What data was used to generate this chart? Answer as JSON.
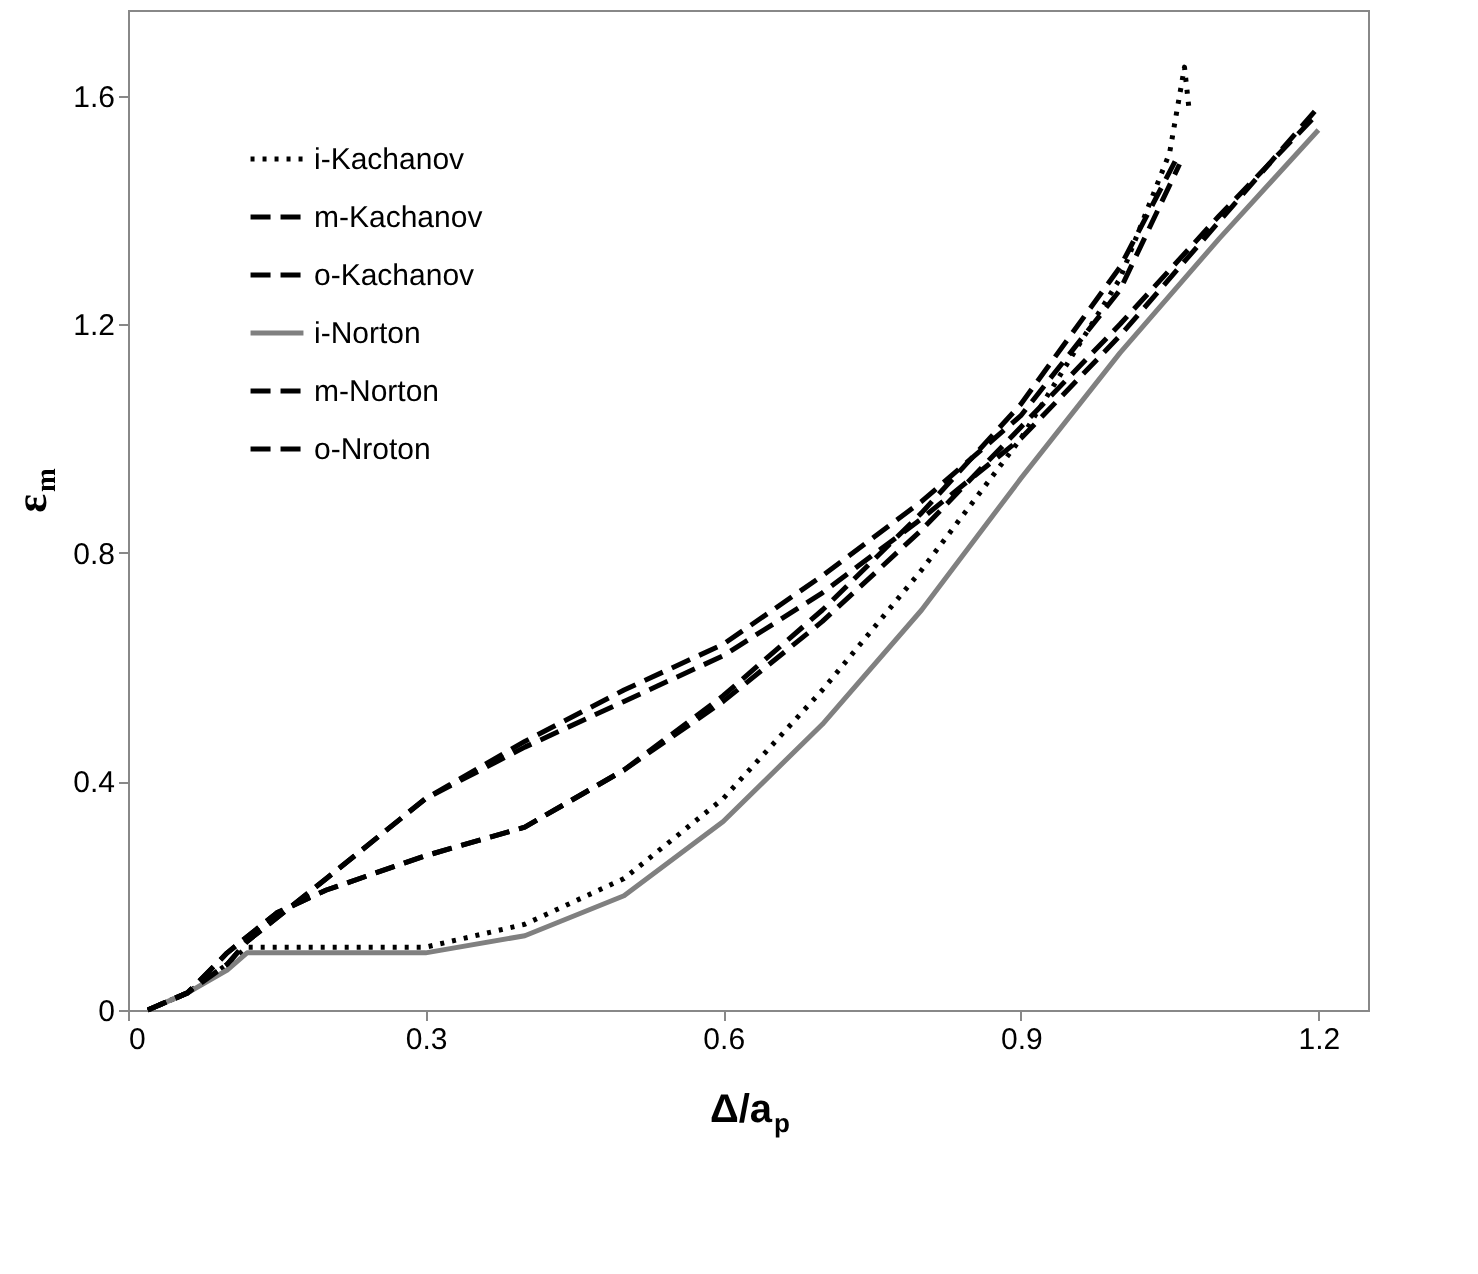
{
  "chart_data": {
    "type": "line",
    "xlabel": "Δ/a$_{p}$",
    "ylabel": "ε$_{m}$",
    "xlim": [
      0,
      1.25
    ],
    "ylim": [
      0,
      1.75
    ],
    "xticks": [
      0,
      0.3,
      0.6,
      0.9,
      1.2
    ],
    "yticks": [
      0,
      0.4,
      0.8,
      1.2,
      1.6
    ],
    "grid": false,
    "legend": "top left",
    "marker": "none",
    "series": [
      {
        "name": "i-Kachanov",
        "color": "#000000",
        "line_style": "dotted",
        "x": [
          0.02,
          0.06,
          0.1,
          0.12,
          0.2,
          0.3,
          0.4,
          0.5,
          0.6,
          0.7,
          0.8,
          0.9,
          1.0,
          1.05,
          1.065,
          1.07
        ],
        "values": [
          0,
          0.03,
          0.08,
          0.11,
          0.11,
          0.11,
          0.15,
          0.23,
          0.37,
          0.56,
          0.77,
          1.0,
          1.28,
          1.5,
          1.65,
          1.57
        ]
      },
      {
        "name": "m-Kachanov",
        "color": "#000000",
        "line_style": "dashed",
        "x": [
          0.02,
          0.06,
          0.1,
          0.15,
          0.2,
          0.3,
          0.4,
          0.5,
          0.6,
          0.7,
          0.8,
          0.9,
          1.0,
          1.06
        ],
        "values": [
          0,
          0.03,
          0.1,
          0.17,
          0.21,
          0.27,
          0.32,
          0.42,
          0.55,
          0.7,
          0.87,
          1.06,
          1.3,
          1.5
        ]
      },
      {
        "name": "o-Kachanov",
        "color": "#000000",
        "line_style": "dashed",
        "x": [
          0.02,
          0.06,
          0.1,
          0.12,
          0.2,
          0.3,
          0.4,
          0.5,
          0.6,
          0.7,
          0.8,
          0.9,
          1.0,
          1.06
        ],
        "values": [
          0,
          0.03,
          0.08,
          0.12,
          0.23,
          0.37,
          0.47,
          0.56,
          0.64,
          0.76,
          0.89,
          1.04,
          1.26,
          1.48
        ]
      },
      {
        "name": "i-Norton",
        "color": "#808080",
        "line_style": "solid",
        "x": [
          0.02,
          0.06,
          0.1,
          0.12,
          0.2,
          0.3,
          0.4,
          0.5,
          0.6,
          0.7,
          0.8,
          0.9,
          1.0,
          1.1,
          1.2
        ],
        "values": [
          0,
          0.03,
          0.07,
          0.1,
          0.1,
          0.1,
          0.13,
          0.2,
          0.33,
          0.5,
          0.7,
          0.93,
          1.15,
          1.35,
          1.54
        ]
      },
      {
        "name": "m-Norton",
        "color": "#000000",
        "line_style": "dashed",
        "x": [
          0.02,
          0.06,
          0.1,
          0.15,
          0.2,
          0.3,
          0.4,
          0.5,
          0.6,
          0.7,
          0.8,
          0.9,
          1.0,
          1.1,
          1.2
        ],
        "values": [
          0,
          0.03,
          0.1,
          0.17,
          0.21,
          0.27,
          0.32,
          0.42,
          0.54,
          0.68,
          0.84,
          1.02,
          1.2,
          1.39,
          1.57
        ]
      },
      {
        "name": "o-Nroton",
        "color": "#000000",
        "line_style": "dashed",
        "x": [
          0.02,
          0.06,
          0.1,
          0.12,
          0.2,
          0.3,
          0.4,
          0.5,
          0.6,
          0.7,
          0.8,
          0.9,
          1.0,
          1.1,
          1.2
        ],
        "values": [
          0,
          0.03,
          0.08,
          0.12,
          0.23,
          0.37,
          0.46,
          0.54,
          0.62,
          0.73,
          0.86,
          1.0,
          1.18,
          1.38,
          1.58
        ]
      }
    ]
  }
}
